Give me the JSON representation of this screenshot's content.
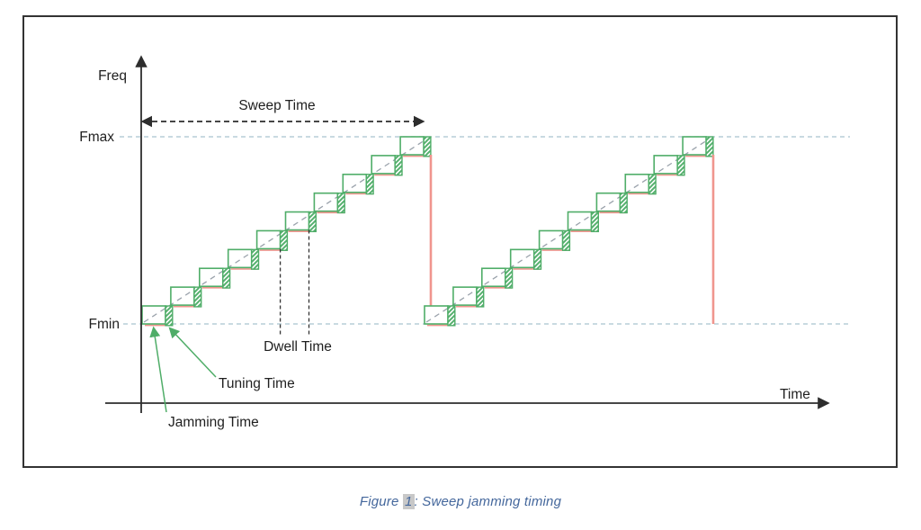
{
  "figure": {
    "y_axis_label": "Freq",
    "x_axis_label": "Time",
    "fmax_label": "Fmax",
    "fmin_label": "Fmin",
    "sweep_time_label": "Sweep Time",
    "dwell_time_label": "Dwell Time",
    "tuning_time_label": "Tuning Time",
    "jamming_time_label": "Jamming Time",
    "sweeps": 2,
    "steps_per_sweep": 10,
    "colors": {
      "step_green": "#4fad68",
      "hatch_green": "#55b06e",
      "reset_red": "#f0958e",
      "level_line_blue": "#a9c3cf",
      "ramp_dash_grey": "#9aa2ab",
      "axis_black": "#2d2d2d"
    }
  },
  "caption": {
    "prefix": "Figure ",
    "number": "1",
    "suffix": ": Sweep jamming timing"
  }
}
